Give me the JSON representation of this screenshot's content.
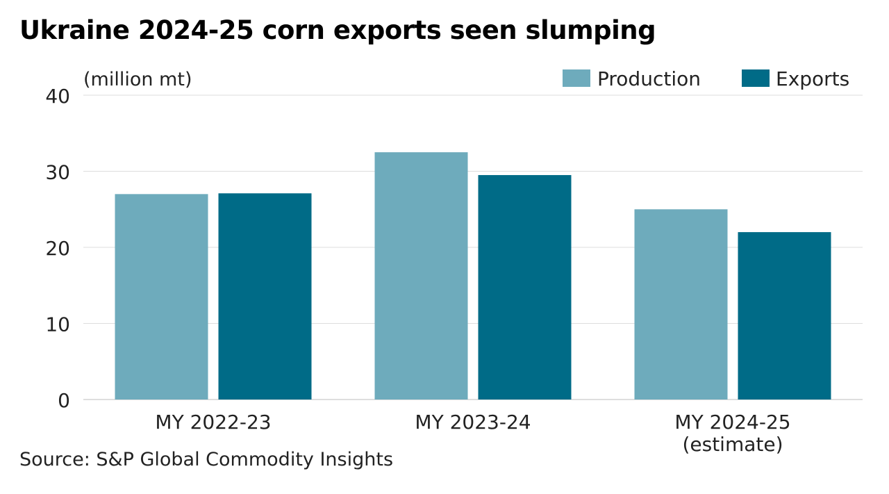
{
  "title": "Ukraine 2024-25 corn exports seen slumping",
  "source": "Source: S&P Global Commodity Insights",
  "chart_data": {
    "type": "bar",
    "unit_label": "(million mt)",
    "categories": [
      [
        "MY 2022-23"
      ],
      [
        "MY 2023-24"
      ],
      [
        "MY 2024-25",
        "(estimate)"
      ]
    ],
    "series": [
      {
        "name": "Production",
        "color": "#6eabbc",
        "values": [
          27.0,
          32.5,
          25.0
        ]
      },
      {
        "name": "Exports",
        "color": "#006b87",
        "values": [
          27.1,
          29.5,
          22.0
        ]
      }
    ],
    "ylim": [
      0,
      40
    ],
    "yticks": [
      0,
      10,
      20,
      30,
      40
    ],
    "grid": true,
    "legend_position": "top-right"
  }
}
